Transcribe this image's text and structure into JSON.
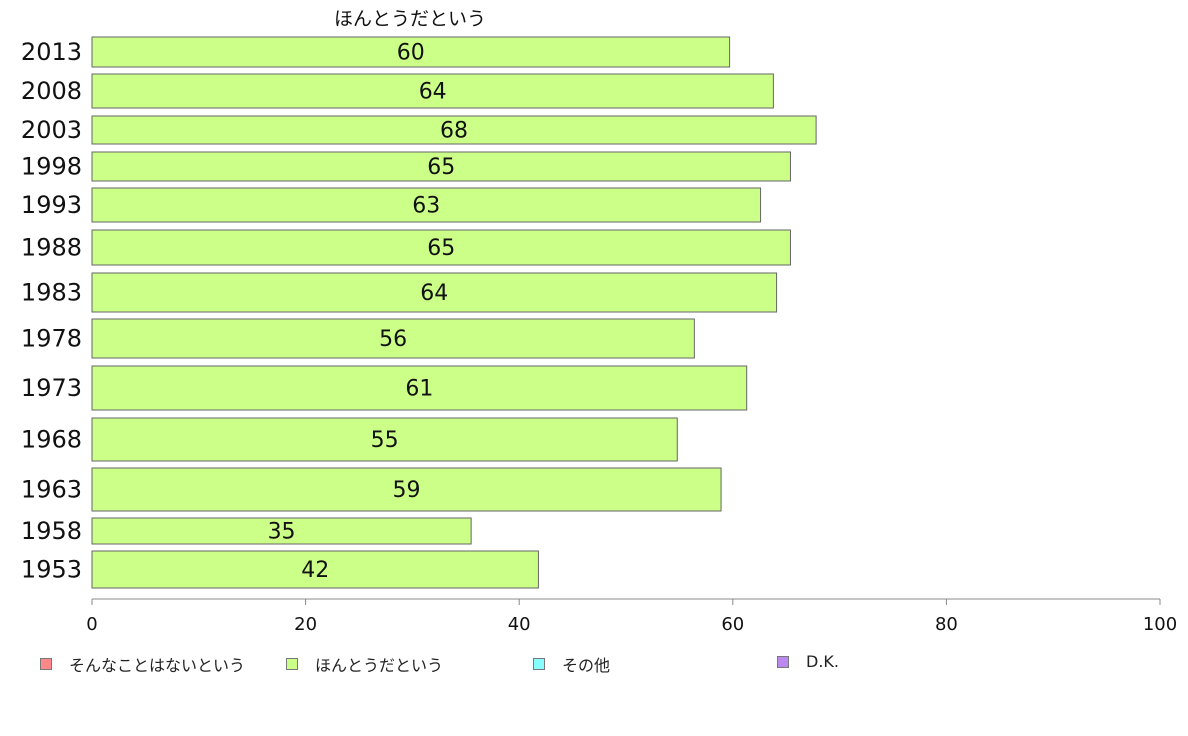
{
  "chart_data": {
    "type": "bar",
    "orientation": "horizontal",
    "title": "ほんとうだという",
    "categories": [
      "2013",
      "2008",
      "2003",
      "1998",
      "1993",
      "1988",
      "1983",
      "1978",
      "1973",
      "1968",
      "1963",
      "1958",
      "1953"
    ],
    "series": [
      {
        "name": "ほんとうだという",
        "color": "#ccff88",
        "values": [
          60,
          64,
          68,
          65,
          63,
          65,
          64,
          56,
          61,
          55,
          59,
          35,
          42
        ],
        "raw_values": [
          59.7,
          63.8,
          67.8,
          65.4,
          62.6,
          65.4,
          64.1,
          56.4,
          61.3,
          54.8,
          58.9,
          35.5,
          41.8
        ]
      }
    ],
    "xlim": [
      0,
      100
    ],
    "xticks": [
      "0",
      "20",
      "40",
      "60",
      "80",
      "100"
    ],
    "xlabel": "",
    "ylabel": "",
    "grid": false,
    "legend_position": "bottom",
    "legend": [
      {
        "label": "そんなことはないという",
        "color": "#ff8888"
      },
      {
        "label": "ほんとうだという",
        "color": "#ccff88"
      },
      {
        "label": "その他",
        "color": "#88ffff"
      },
      {
        "label": "D.K.",
        "color": "#bb88ee"
      }
    ]
  }
}
